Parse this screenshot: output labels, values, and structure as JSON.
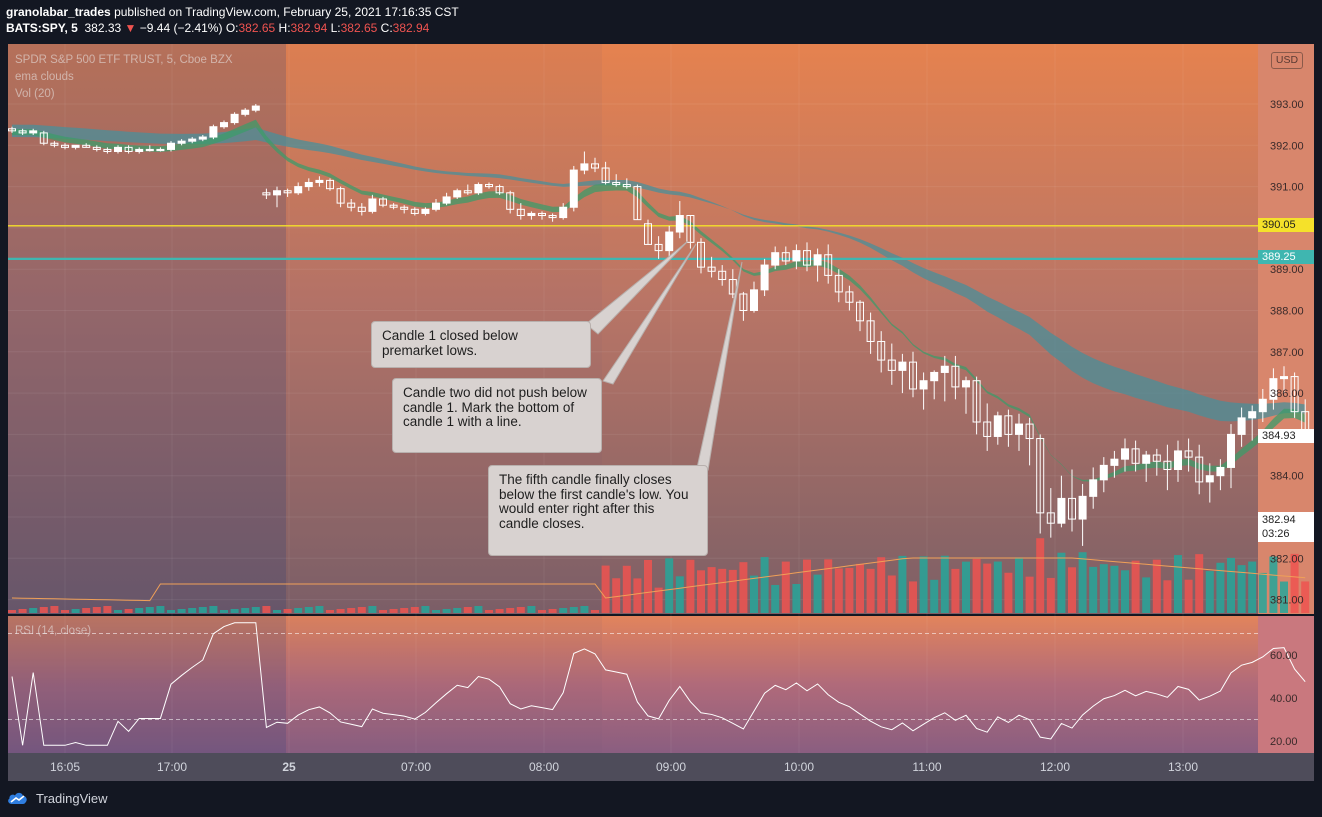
{
  "header": {
    "author": "granolabar_trades",
    "published_text": "published on TradingView.com, February 25, 2021 17:16:35 CST",
    "symbol_line": "BATS:SPY, 5",
    "last_price": "382.33",
    "change": "−9.44 (−2.41%)",
    "open_label": "O:",
    "open": "382.65",
    "high_label": "H:",
    "high": "382.94",
    "low_label": "L:",
    "low": "382.65",
    "close_label": "C:",
    "close": "382.94"
  },
  "legend": {
    "title": "SPDR S&P 500 ETF TRUST, 5, Cboe BZX",
    "indicator1": "ema clouds",
    "indicator2": "Vol (20)",
    "rsi": "RSI (14, close)"
  },
  "currency": "USD",
  "footer": {
    "brand": "TradingView"
  },
  "annotations": [
    "Candle 1 closed below premarket lows.",
    "Candle two did not push below candle 1. Mark the bottom of candle 1 with a line.",
    "The fifth candle finally closes below the first candle's low. You would enter right after this candle closes."
  ],
  "price_tags": {
    "yellow_line": "390.05",
    "teal_line": "389.25",
    "ema_level": "384.93",
    "last": "382.94",
    "countdown": "03:26"
  },
  "colors": {
    "background": "#131722",
    "up_candle": "#ffffff",
    "down_candle": "#ffffff",
    "yellow_line": "#f5e12a",
    "teal_line": "#3fb6b0",
    "fast_cloud": "#3d9b6a",
    "slow_cloud": "#4a8f9a",
    "vol_up": "#26a69a",
    "vol_down": "#ef5350"
  },
  "chart_data": {
    "type": "candlestick",
    "x_tick_labels": [
      "16:05",
      "17:00",
      "25",
      "07:00",
      "08:00",
      "09:00",
      "10:00",
      "11:00",
      "12:00",
      "13:00"
    ],
    "y_tick_labels": [
      "393.00",
      "392.00",
      "391.00",
      "390.00",
      "389.00",
      "388.00",
      "387.00",
      "386.00",
      "385.00",
      "384.00",
      "383.00",
      "382.00",
      "381.00"
    ],
    "ylim": [
      380.7,
      394.3
    ],
    "horizontal_lines": [
      390.05,
      389.25
    ],
    "candles": [
      [
        392.4,
        392.45,
        392.3,
        392.35
      ],
      [
        392.35,
        392.4,
        392.25,
        392.3
      ],
      [
        392.3,
        392.4,
        392.25,
        392.35
      ],
      [
        392.3,
        392.35,
        392.0,
        392.05
      ],
      [
        392.05,
        392.1,
        391.95,
        392.0
      ],
      [
        392.0,
        392.05,
        391.9,
        391.95
      ],
      [
        391.95,
        392.0,
        391.9,
        392.0
      ],
      [
        392.0,
        392.05,
        391.95,
        391.95
      ],
      [
        391.95,
        392.0,
        391.85,
        391.9
      ],
      [
        391.9,
        391.95,
        391.8,
        391.85
      ],
      [
        391.85,
        392.0,
        391.8,
        391.95
      ],
      [
        391.95,
        392.0,
        391.8,
        391.85
      ],
      [
        391.85,
        391.95,
        391.8,
        391.9
      ],
      [
        391.9,
        392.0,
        391.85,
        391.9
      ],
      [
        391.9,
        391.95,
        391.85,
        391.9
      ],
      [
        391.9,
        392.1,
        391.85,
        392.05
      ],
      [
        392.05,
        392.15,
        392.0,
        392.1
      ],
      [
        392.1,
        392.2,
        392.05,
        392.15
      ],
      [
        392.15,
        392.25,
        392.1,
        392.2
      ],
      [
        392.2,
        392.5,
        392.15,
        392.45
      ],
      [
        392.45,
        392.6,
        392.4,
        392.55
      ],
      [
        392.55,
        392.8,
        392.5,
        392.75
      ],
      [
        392.75,
        392.9,
        392.7,
        392.85
      ],
      [
        392.85,
        393.0,
        392.8,
        392.95
      ],
      [
        390.85,
        390.95,
        390.7,
        390.8
      ],
      [
        390.8,
        391.0,
        390.5,
        390.9
      ],
      [
        390.9,
        390.95,
        390.75,
        390.85
      ],
      [
        390.85,
        391.1,
        390.8,
        391.0
      ],
      [
        391.0,
        391.2,
        390.9,
        391.1
      ],
      [
        391.1,
        391.25,
        391.0,
        391.15
      ],
      [
        391.15,
        391.2,
        390.9,
        390.95
      ],
      [
        390.95,
        391.0,
        390.5,
        390.6
      ],
      [
        390.6,
        390.7,
        390.4,
        390.5
      ],
      [
        390.5,
        390.6,
        390.3,
        390.4
      ],
      [
        390.4,
        390.8,
        390.35,
        390.7
      ],
      [
        390.7,
        390.75,
        390.5,
        390.55
      ],
      [
        390.55,
        390.6,
        390.45,
        390.5
      ],
      [
        390.5,
        390.55,
        390.35,
        390.45
      ],
      [
        390.45,
        390.5,
        390.3,
        390.35
      ],
      [
        390.35,
        390.5,
        390.3,
        390.45
      ],
      [
        390.45,
        390.7,
        390.4,
        390.6
      ],
      [
        390.6,
        390.85,
        390.55,
        390.75
      ],
      [
        390.75,
        390.95,
        390.7,
        390.9
      ],
      [
        390.9,
        391.05,
        390.8,
        390.85
      ],
      [
        390.85,
        391.1,
        390.8,
        391.05
      ],
      [
        391.05,
        391.1,
        390.95,
        391.0
      ],
      [
        391.0,
        391.05,
        390.8,
        390.85
      ],
      [
        390.85,
        390.9,
        390.35,
        390.45
      ],
      [
        390.45,
        390.6,
        390.2,
        390.3
      ],
      [
        390.3,
        390.4,
        390.2,
        390.35
      ],
      [
        390.35,
        390.4,
        390.2,
        390.3
      ],
      [
        390.3,
        390.35,
        390.15,
        390.25
      ],
      [
        390.25,
        390.6,
        390.2,
        390.5
      ],
      [
        390.5,
        391.5,
        390.4,
        391.4
      ],
      [
        391.4,
        391.85,
        391.3,
        391.55
      ],
      [
        391.55,
        391.7,
        391.35,
        391.45
      ],
      [
        391.45,
        391.6,
        391.05,
        391.1
      ],
      [
        391.1,
        391.3,
        391.0,
        391.05
      ],
      [
        391.05,
        391.2,
        390.95,
        391.0
      ],
      [
        391.0,
        391.05,
        390.2,
        390.2
      ],
      [
        390.1,
        390.2,
        389.6,
        389.6
      ],
      [
        389.6,
        389.8,
        389.25,
        389.45
      ],
      [
        389.45,
        390.05,
        389.3,
        389.9
      ],
      [
        389.9,
        390.65,
        389.75,
        390.3
      ],
      [
        390.3,
        390.3,
        389.5,
        389.65
      ],
      [
        389.65,
        389.75,
        388.9,
        389.05
      ],
      [
        389.05,
        389.3,
        388.8,
        388.95
      ],
      [
        388.95,
        389.1,
        388.6,
        388.75
      ],
      [
        388.75,
        389.0,
        388.3,
        388.4
      ],
      [
        388.4,
        388.45,
        387.75,
        388.0
      ],
      [
        388.0,
        388.7,
        387.95,
        388.5
      ],
      [
        388.5,
        389.25,
        388.35,
        389.1
      ],
      [
        389.1,
        389.55,
        389.0,
        389.4
      ],
      [
        389.4,
        389.55,
        389.1,
        389.2
      ],
      [
        389.2,
        389.6,
        389.0,
        389.45
      ],
      [
        389.45,
        389.65,
        388.95,
        389.1
      ],
      [
        389.1,
        389.5,
        388.7,
        389.35
      ],
      [
        389.35,
        389.6,
        388.65,
        388.85
      ],
      [
        388.85,
        389.0,
        388.2,
        388.45
      ],
      [
        388.45,
        388.6,
        388.0,
        388.2
      ],
      [
        388.2,
        388.25,
        387.5,
        387.75
      ],
      [
        387.75,
        387.95,
        386.95,
        387.25
      ],
      [
        387.25,
        387.5,
        386.5,
        386.8
      ],
      [
        386.8,
        387.2,
        386.2,
        386.55
      ],
      [
        386.55,
        386.95,
        386.0,
        386.75
      ],
      [
        386.75,
        387.0,
        385.9,
        386.1
      ],
      [
        386.1,
        386.5,
        385.6,
        386.3
      ],
      [
        386.3,
        386.55,
        385.85,
        386.5
      ],
      [
        386.5,
        386.9,
        385.8,
        386.65
      ],
      [
        386.65,
        386.9,
        385.85,
        386.15
      ],
      [
        386.15,
        386.4,
        385.5,
        386.3
      ],
      [
        386.3,
        386.4,
        385.0,
        385.3
      ],
      [
        385.3,
        385.75,
        384.6,
        384.95
      ],
      [
        384.95,
        385.55,
        384.75,
        385.45
      ],
      [
        385.45,
        385.6,
        384.7,
        385.0
      ],
      [
        385.0,
        385.5,
        384.6,
        385.25
      ],
      [
        385.25,
        385.4,
        384.25,
        384.9
      ],
      [
        384.9,
        385.0,
        382.6,
        383.1
      ],
      [
        383.1,
        383.7,
        382.5,
        382.85
      ],
      [
        382.85,
        384.0,
        382.75,
        383.45
      ],
      [
        383.45,
        384.15,
        382.65,
        382.95
      ],
      [
        382.95,
        383.8,
        382.3,
        383.5
      ],
      [
        383.5,
        384.2,
        383.2,
        383.9
      ],
      [
        383.9,
        384.45,
        383.6,
        384.25
      ],
      [
        384.25,
        384.6,
        383.95,
        384.4
      ],
      [
        384.4,
        384.9,
        384.1,
        384.65
      ],
      [
        384.65,
        384.85,
        384.1,
        384.3
      ],
      [
        384.3,
        384.6,
        383.85,
        384.5
      ],
      [
        384.5,
        384.65,
        384.0,
        384.35
      ],
      [
        384.35,
        384.75,
        383.65,
        384.15
      ],
      [
        384.15,
        384.85,
        383.85,
        384.6
      ],
      [
        384.6,
        384.9,
        384.1,
        384.45
      ],
      [
        384.45,
        384.75,
        383.55,
        383.85
      ],
      [
        383.85,
        384.3,
        383.35,
        384.0
      ],
      [
        384.0,
        384.4,
        383.65,
        384.2
      ],
      [
        384.2,
        385.25,
        383.7,
        385.0
      ],
      [
        385.0,
        385.65,
        384.7,
        385.4
      ],
      [
        385.4,
        385.7,
        384.85,
        385.55
      ],
      [
        385.55,
        386.1,
        385.3,
        385.85
      ],
      [
        385.85,
        386.6,
        385.6,
        386.35
      ],
      [
        386.35,
        386.65,
        386.0,
        386.4
      ],
      [
        386.4,
        386.5,
        385.4,
        385.55
      ],
      [
        385.55,
        385.85,
        384.85,
        384.93
      ]
    ]
  }
}
